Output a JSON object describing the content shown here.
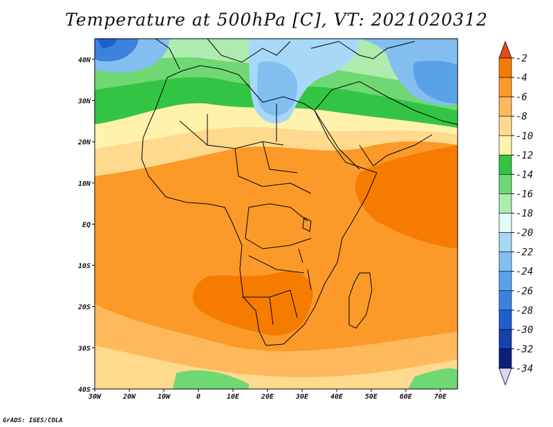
{
  "title": "Temperature at 500hPa [C], VT: 2021020312",
  "footer": "GrADS: IGES/COLA",
  "map": {
    "lon_range": [
      -30,
      75
    ],
    "lat_range": [
      -40,
      45
    ],
    "lon_ticks": [
      {
        "value": -30,
        "label": "30W"
      },
      {
        "value": -20,
        "label": "20W"
      },
      {
        "value": -10,
        "label": "10W"
      },
      {
        "value": 0,
        "label": "0"
      },
      {
        "value": 10,
        "label": "10E"
      },
      {
        "value": 20,
        "label": "20E"
      },
      {
        "value": 30,
        "label": "30E"
      },
      {
        "value": 40,
        "label": "40E"
      },
      {
        "value": 50,
        "label": "50E"
      },
      {
        "value": 60,
        "label": "60E"
      },
      {
        "value": 70,
        "label": "70E"
      }
    ],
    "lat_ticks": [
      {
        "value": 40,
        "label": "40N"
      },
      {
        "value": 30,
        "label": "30N"
      },
      {
        "value": 20,
        "label": "20N"
      },
      {
        "value": 10,
        "label": "10N"
      },
      {
        "value": 0,
        "label": "EQ"
      },
      {
        "value": -10,
        "label": "10S"
      },
      {
        "value": -20,
        "label": "20S"
      },
      {
        "value": -30,
        "label": "30S"
      },
      {
        "value": -40,
        "label": "40S"
      }
    ]
  },
  "colorbar": {
    "bins": [
      {
        "color": "#e64a19",
        "label": "-2"
      },
      {
        "color": "#f57c00",
        "label": "-4"
      },
      {
        "color": "#fb9a29",
        "label": "-6"
      },
      {
        "color": "#fdb95c",
        "label": "-8"
      },
      {
        "color": "#fed98e",
        "label": "-10"
      },
      {
        "color": "#fff2ac",
        "label": "-12"
      },
      {
        "color": "#34c443",
        "label": "-14"
      },
      {
        "color": "#6fd873",
        "label": "-16"
      },
      {
        "color": "#aeebae",
        "label": "-18"
      },
      {
        "color": "#e0faf5",
        "label": "-20"
      },
      {
        "color": "#a8d8f8",
        "label": "-22"
      },
      {
        "color": "#82bff0",
        "label": "-24"
      },
      {
        "color": "#5aa2e8",
        "label": "-26"
      },
      {
        "color": "#3a82de",
        "label": "-28"
      },
      {
        "color": "#1f5fce",
        "label": "-30"
      },
      {
        "color": "#1540ae",
        "label": "-32"
      },
      {
        "color": "#0d1e7a",
        "label": "-34"
      },
      {
        "color": "#d8d6f7",
        "label": ""
      }
    ]
  }
}
